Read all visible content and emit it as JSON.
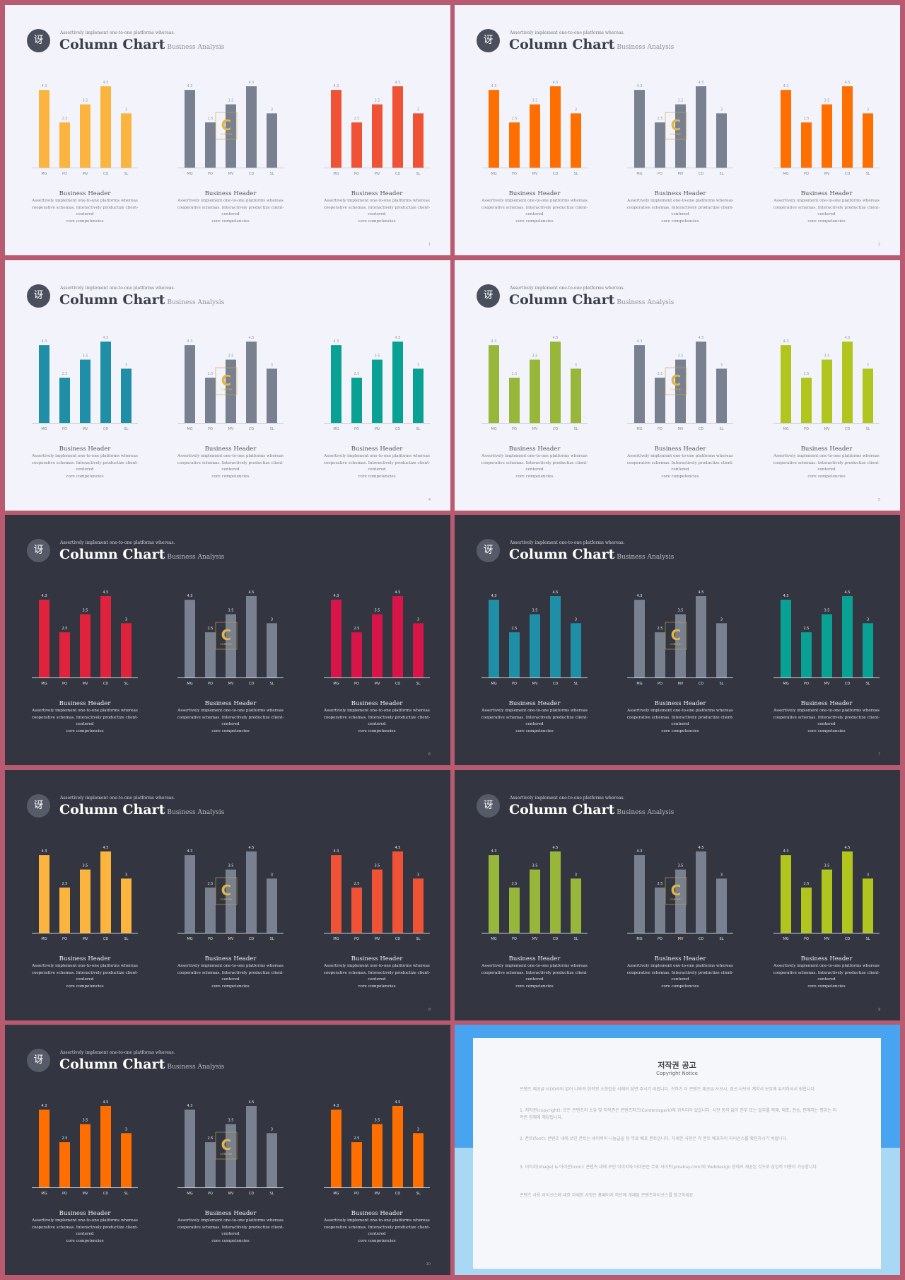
{
  "colors": {
    "frame": "#b85a70",
    "light_bg": "#f3f4fb",
    "dark_bg": "#333640",
    "gray_bar": "#79808f",
    "notice_blue": "#48a4f1",
    "notice_light": "#a9d8f5"
  },
  "slide_common": {
    "logo_glyph": "讶",
    "tagline": "Assertively implement one-to-one platforms whereas.",
    "title": "Column Chart",
    "subtitle": "Business Analysis",
    "header": "Business Header",
    "desc_line1": "Assertively implement one-to-one platforms whereas",
    "desc_line2": "cooperative schemas. Interactively productize client-centered",
    "desc_line3": "core competencies",
    "watermark_letter": "C",
    "watermark_text": "CONTENT"
  },
  "chart_data": {
    "type": "bar",
    "categories": [
      "MG",
      "PO",
      "MV",
      "CD",
      "SL"
    ],
    "values": [
      4.3,
      2.5,
      3.5,
      4.5,
      3
    ],
    "value_labels": [
      "4.3",
      "2.5",
      "3.5",
      "4.5",
      "3"
    ],
    "ylim": [
      0,
      4.5
    ],
    "xlabel": "",
    "ylabel": "",
    "grid": false
  },
  "slides": [
    {
      "theme": "light",
      "colors": [
        "#fbb53f",
        "#79808f",
        "#ef5234"
      ],
      "page": "1"
    },
    {
      "theme": "light",
      "colors": [
        "#ff6f00",
        "#79808f",
        "#ff6f00"
      ],
      "page": "2"
    },
    {
      "theme": "light",
      "colors": [
        "#1f8fa8",
        "#79808f",
        "#0aa195"
      ],
      "page": "4"
    },
    {
      "theme": "light",
      "colors": [
        "#97b63a",
        "#79808f",
        "#b0c51d"
      ],
      "page": "5"
    },
    {
      "theme": "dark",
      "colors": [
        "#e0233c",
        "#79808f",
        "#d81549"
      ],
      "page": "6"
    },
    {
      "theme": "dark",
      "colors": [
        "#1f8fa8",
        "#79808f",
        "#0aa195"
      ],
      "page": "7"
    },
    {
      "theme": "dark",
      "colors": [
        "#fbb53f",
        "#79808f",
        "#ef5234"
      ],
      "page": "8"
    },
    {
      "theme": "dark",
      "colors": [
        "#97b63a",
        "#79808f",
        "#b0c51d"
      ],
      "page": "9"
    },
    {
      "theme": "dark",
      "colors": [
        "#ff6f00",
        "#79808f",
        "#ff6f00"
      ],
      "page": "10"
    }
  ],
  "notice": {
    "title": "저작권 공고",
    "subtitle": "Copyright Notice",
    "intro": "콘텐츠 제공급 사(X)사의 없어 나와의 헌작권 소화법상 사례의 답변 주시기 바랍니다. 귀하가 이 콘텐츠 제공급 사보시, 경선 사보서 계약서 보호에 유의하셔서 원합니다.",
    "item1": "1. 저작권(copyright): 모든 콘텐츠의 소유 및 저작권은 콘텐츠파크(Contentspark)에 귀속되어 있습니다. 사전 동의 없이 전부 또는 일부를 복제, 배포, 전송, 판매하는 행위는 저작권 침해에 해당됩니다.",
    "item2": "2. 폰트(font): 콘텐츠 내에 쓰인 폰트는 네이버의 나눔글꼴 등 무료 배포 폰트입니다. 자세한 사항은 각 폰트 배포처의 라이선스를 확인하시기 바랍니다.",
    "item3": "3. 이미지(image) & 아이콘(icon): 콘텐츠 내에 쓰인 이미지와 아이콘은 무료 사이트(pixabay.com)와 Webdesign 등에서 제공된 것으로 상업적 이용이 가능합니다.",
    "outro": "콘텐츠 사용 라이선스에 대한 자세한 사항은 홈페이지 하단에 게재된 콘텐츠라이선스를 참고하세요."
  }
}
